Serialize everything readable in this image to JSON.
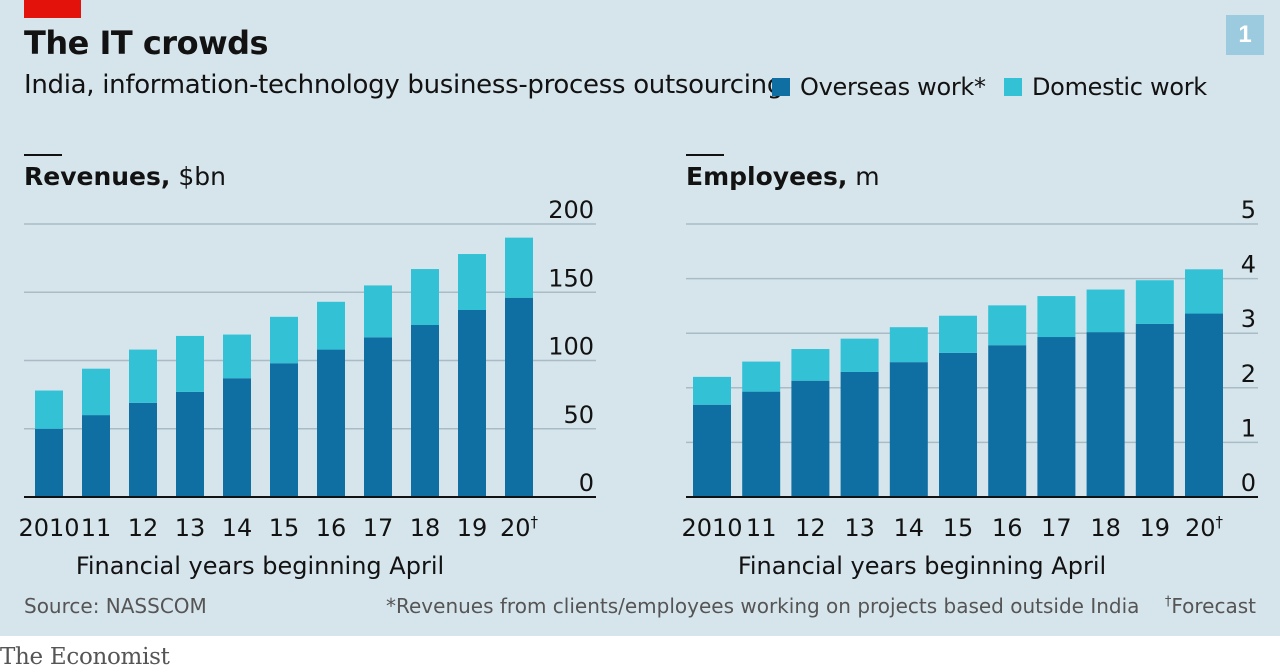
{
  "header": {
    "title": "The IT crowds",
    "subtitle": "India, information-technology business-process outsourcing",
    "chart_number": "1"
  },
  "legend": {
    "overseas": {
      "label": "Overseas work*",
      "color": "#0f6fa3"
    },
    "domestic": {
      "label": "Domestic work",
      "color": "#33c1d6"
    }
  },
  "footer": {
    "source": "Source: NASSCOM",
    "note": "*Revenues from clients/employees working on projects based outside India",
    "forecast_note": "Forecast",
    "dagger": "†"
  },
  "brand": "The Economist",
  "chart_data": [
    {
      "type": "bar",
      "stacked": true,
      "title": "Revenues,",
      "unit": "$bn",
      "xlabel": "Financial years beginning April",
      "categories": [
        "2010",
        "11",
        "12",
        "13",
        "14",
        "15",
        "16",
        "17",
        "18",
        "19",
        "20"
      ],
      "forecast_category_marker": "†",
      "ylim": [
        0,
        200
      ],
      "yticks": [
        0,
        50,
        100,
        150,
        200
      ],
      "grid": true,
      "y_axis_side": "right",
      "series": [
        {
          "name": "Overseas work*",
          "color": "#0f6fa3",
          "values": [
            50,
            60,
            69,
            77,
            87,
            98,
            108,
            117,
            126,
            137,
            146
          ]
        },
        {
          "name": "Domestic work",
          "color": "#33c1d6",
          "values": [
            28,
            34,
            39,
            41,
            32,
            34,
            35,
            38,
            41,
            41,
            44
          ]
        }
      ]
    },
    {
      "type": "bar",
      "stacked": true,
      "title": "Employees,",
      "unit": "m",
      "xlabel": "Financial years beginning April",
      "categories": [
        "2010",
        "11",
        "12",
        "13",
        "14",
        "15",
        "16",
        "17",
        "18",
        "19",
        "20"
      ],
      "forecast_category_marker": "†",
      "ylim": [
        0,
        5
      ],
      "yticks": [
        0,
        1,
        2,
        3,
        4,
        5
      ],
      "grid": true,
      "y_axis_side": "right",
      "series": [
        {
          "name": "Overseas work*",
          "color": "#0f6fa3",
          "values": [
            1.69,
            1.93,
            2.13,
            2.29,
            2.47,
            2.64,
            2.78,
            2.93,
            3.02,
            3.17,
            3.36
          ]
        },
        {
          "name": "Domestic work",
          "color": "#33c1d6",
          "values": [
            0.51,
            0.55,
            0.58,
            0.61,
            0.64,
            0.68,
            0.73,
            0.75,
            0.78,
            0.8,
            0.81
          ]
        }
      ]
    }
  ]
}
